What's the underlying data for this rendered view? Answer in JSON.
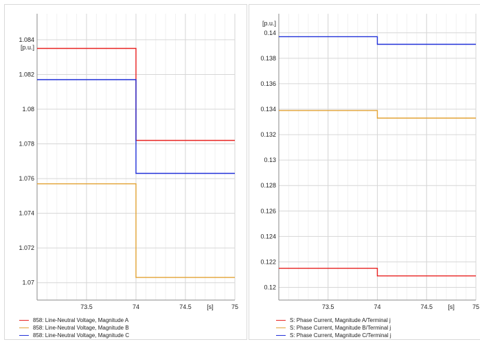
{
  "chart_data": [
    {
      "type": "line",
      "unit_label": "[p.u.]",
      "x_unit_label": "[s]",
      "xlim": [
        73,
        75
      ],
      "ylim": [
        1.069,
        1.0855
      ],
      "x_ticks": [
        73.5,
        74,
        74.5,
        75
      ],
      "y_ticks": [
        1.07,
        1.072,
        1.074,
        1.076,
        1.078,
        1.08,
        1.082,
        1.084
      ],
      "grid": true,
      "legend_position": "bottom-left",
      "series": [
        {
          "name": "858: Line-Neutral Voltage, Magnitude A",
          "color": "#e8201f",
          "x": [
            73,
            74,
            74,
            75
          ],
          "y": [
            1.0835,
            1.0835,
            1.0782,
            1.0782
          ]
        },
        {
          "name": "858: Line-Neutral Voltage, Magnitude B",
          "color": "#e2a233",
          "x": [
            73,
            74,
            74,
            75
          ],
          "y": [
            1.0757,
            1.0757,
            1.0703,
            1.0703
          ]
        },
        {
          "name": "858: Line-Neutral Voltage, Magnitude C",
          "color": "#1f2fd8",
          "x": [
            73,
            74,
            74,
            75
          ],
          "y": [
            1.0817,
            1.0817,
            1.0763,
            1.0763
          ]
        }
      ]
    },
    {
      "type": "line",
      "unit_label": "[p.u.]",
      "x_unit_label": "[s]",
      "xlim": [
        73,
        75
      ],
      "ylim": [
        0.119,
        0.1415
      ],
      "x_ticks": [
        73.5,
        74,
        74.5,
        75
      ],
      "y_ticks": [
        0.12,
        0.122,
        0.124,
        0.126,
        0.128,
        0.13,
        0.132,
        0.134,
        0.136,
        0.138,
        0.14
      ],
      "grid": true,
      "legend_position": "bottom-left",
      "series": [
        {
          "name": "S: Phase Current, Magnitude A/Terminal j",
          "color": "#e8201f",
          "x": [
            73,
            74,
            74,
            75
          ],
          "y": [
            0.1215,
            0.1215,
            0.1209,
            0.1209
          ]
        },
        {
          "name": "S: Phase Current, Magnitude B/Terminal j",
          "color": "#e2a233",
          "x": [
            73,
            74,
            74,
            75
          ],
          "y": [
            0.1339,
            0.1339,
            0.1333,
            0.1333
          ]
        },
        {
          "name": "S: Phase Current, Magnitude C/Terminal j",
          "color": "#1f2fd8",
          "x": [
            73,
            74,
            74,
            75
          ],
          "y": [
            0.1397,
            0.1397,
            0.1391,
            0.1391
          ]
        }
      ]
    }
  ]
}
